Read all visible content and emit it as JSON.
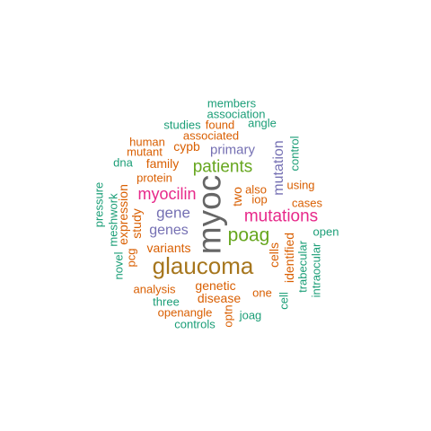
{
  "colors": {
    "teal": "#1b9e77",
    "orange": "#d95f02",
    "purple": "#7570b3",
    "magenta": "#e7298a",
    "green": "#66a61e",
    "gold": "#a6761d",
    "gray": "#666666"
  },
  "words": [
    {
      "id": "myoc",
      "text": "myoc",
      "color": "gray",
      "vertical": true
    },
    {
      "id": "glaucoma",
      "text": "glaucoma",
      "color": "gold",
      "vertical": false
    },
    {
      "id": "mutations",
      "text": "mutations",
      "color": "magenta",
      "vertical": false
    },
    {
      "id": "poag",
      "text": "poag",
      "color": "green",
      "vertical": false
    },
    {
      "id": "patients",
      "text": "patients",
      "color": "green",
      "vertical": false
    },
    {
      "id": "myocilin",
      "text": "myocilin",
      "color": "magenta",
      "vertical": false
    },
    {
      "id": "mutation",
      "text": "mutation",
      "color": "purple",
      "vertical": true
    },
    {
      "id": "gene",
      "text": "gene",
      "color": "purple",
      "vertical": false
    },
    {
      "id": "genes",
      "text": "genes",
      "color": "purple",
      "vertical": false
    },
    {
      "id": "primary",
      "text": "primary",
      "color": "purple",
      "vertical": false
    },
    {
      "id": "members",
      "text": "members",
      "color": "teal",
      "vertical": false
    },
    {
      "id": "association",
      "text": "association",
      "color": "teal",
      "vertical": false
    },
    {
      "id": "studies",
      "text": "studies",
      "color": "teal",
      "vertical": false
    },
    {
      "id": "found",
      "text": "found",
      "color": "orange",
      "vertical": false
    },
    {
      "id": "angle",
      "text": "angle",
      "color": "teal",
      "vertical": false
    },
    {
      "id": "associated",
      "text": "associated",
      "color": "orange",
      "vertical": false
    },
    {
      "id": "human",
      "text": "human",
      "color": "orange",
      "vertical": false
    },
    {
      "id": "cypb",
      "text": "cypb",
      "color": "orange",
      "vertical": false
    },
    {
      "id": "mutant",
      "text": "mutant",
      "color": "orange",
      "vertical": false
    },
    {
      "id": "control",
      "text": "control",
      "color": "teal",
      "vertical": true
    },
    {
      "id": "dna",
      "text": "dna",
      "color": "teal",
      "vertical": false
    },
    {
      "id": "family",
      "text": "family",
      "color": "orange",
      "vertical": false
    },
    {
      "id": "protein",
      "text": "protein",
      "color": "orange",
      "vertical": false
    },
    {
      "id": "using",
      "text": "using",
      "color": "orange",
      "vertical": false
    },
    {
      "id": "also",
      "text": "also",
      "color": "orange",
      "vertical": false
    },
    {
      "id": "two",
      "text": "two",
      "color": "orange",
      "vertical": true
    },
    {
      "id": "iop",
      "text": "iop",
      "color": "orange",
      "vertical": false
    },
    {
      "id": "cases",
      "text": "cases",
      "color": "orange",
      "vertical": false
    },
    {
      "id": "pressure",
      "text": "pressure",
      "color": "teal",
      "vertical": true
    },
    {
      "id": "meshwork",
      "text": "meshwork",
      "color": "teal",
      "vertical": true
    },
    {
      "id": "expression",
      "text": "expression",
      "color": "orange",
      "vertical": true
    },
    {
      "id": "study",
      "text": "study",
      "color": "orange",
      "vertical": true
    },
    {
      "id": "open",
      "text": "open",
      "color": "teal",
      "vertical": false
    },
    {
      "id": "identified",
      "text": "identified",
      "color": "orange",
      "vertical": true
    },
    {
      "id": "cells",
      "text": "cells",
      "color": "orange",
      "vertical": true
    },
    {
      "id": "trabecular",
      "text": "trabecular",
      "color": "teal",
      "vertical": true
    },
    {
      "id": "intraocular",
      "text": "intraocular",
      "color": "teal",
      "vertical": true
    },
    {
      "id": "variants",
      "text": "variants",
      "color": "orange",
      "vertical": false
    },
    {
      "id": "pcg",
      "text": "pcg",
      "color": "orange",
      "vertical": true
    },
    {
      "id": "novel",
      "text": "novel",
      "color": "teal",
      "vertical": true
    },
    {
      "id": "genetic",
      "text": "genetic",
      "color": "orange",
      "vertical": false
    },
    {
      "id": "analysis",
      "text": "analysis",
      "color": "orange",
      "vertical": false
    },
    {
      "id": "disease",
      "text": "disease",
      "color": "orange",
      "vertical": false
    },
    {
      "id": "one",
      "text": "one",
      "color": "orange",
      "vertical": false
    },
    {
      "id": "cell",
      "text": "cell",
      "color": "teal",
      "vertical": true
    },
    {
      "id": "three",
      "text": "three",
      "color": "teal",
      "vertical": false
    },
    {
      "id": "openangle",
      "text": "openangle",
      "color": "orange",
      "vertical": false
    },
    {
      "id": "optn",
      "text": "optn",
      "color": "orange",
      "vertical": true
    },
    {
      "id": "joag",
      "text": "joag",
      "color": "teal",
      "vertical": false
    },
    {
      "id": "controls",
      "text": "controls",
      "color": "teal",
      "vertical": false
    }
  ]
}
